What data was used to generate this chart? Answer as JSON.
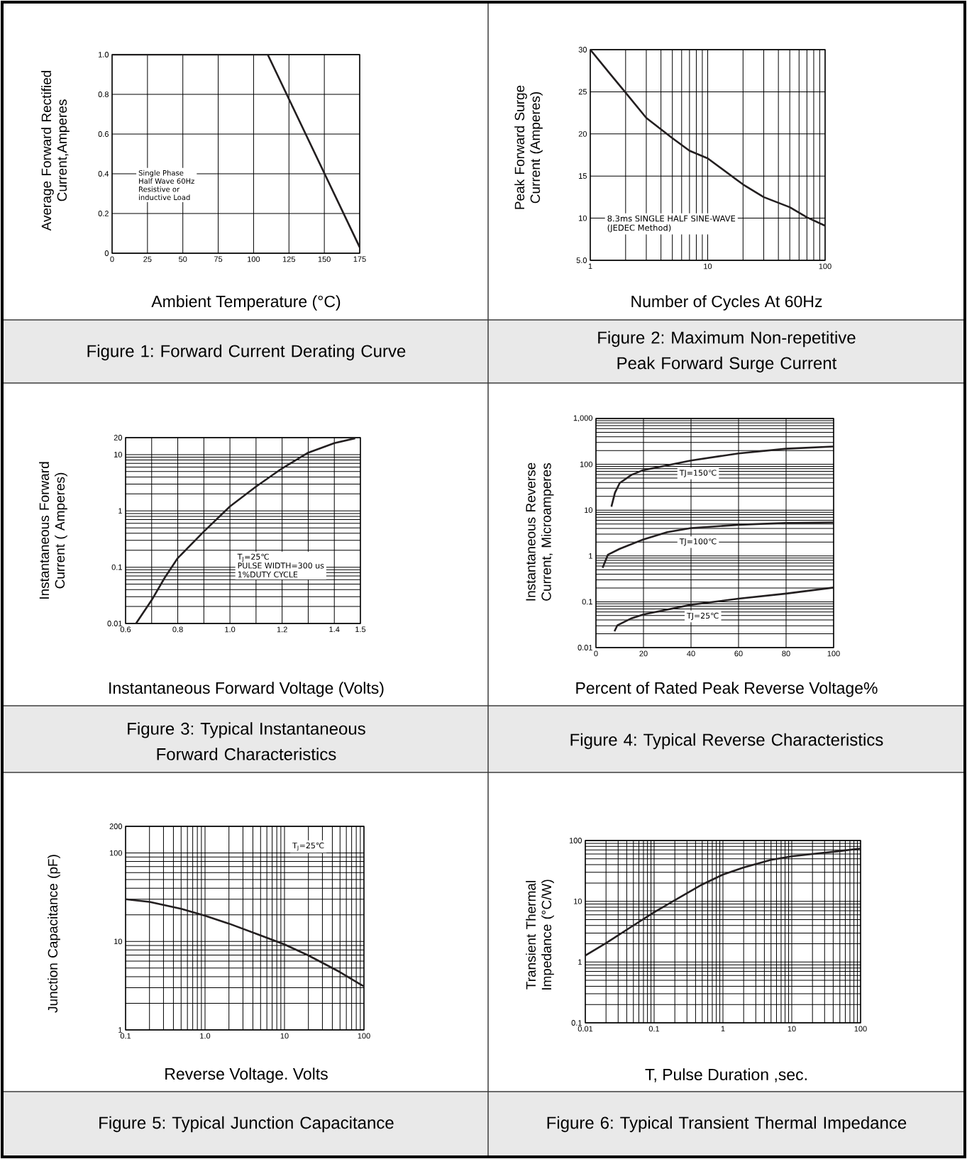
{
  "chart_data": [
    {
      "type": "line",
      "title": "Figure 1: Forward Current Derating Curve",
      "xlabel": "Ambient Temperature (°C)",
      "ylabel": "Average Forward Rectified Current,Amperes",
      "annotations": [
        "Single Phase",
        "Half Wave 60Hz",
        "Resistive or",
        "inductive Load"
      ],
      "series": [
        {
          "color": "#231f20",
          "x": [
            0,
            110,
            175
          ],
          "values": [
            1.0,
            1.0,
            0.03
          ]
        }
      ],
      "xlim": [
        0,
        175
      ],
      "ylim": [
        0,
        1
      ],
      "xticks": [
        0,
        25,
        50,
        75,
        100,
        125,
        150,
        175
      ],
      "yticks": [
        0,
        0.2,
        0.4,
        0.6,
        0.8,
        {
          "value": 1,
          "label": "1.0"
        }
      ],
      "grid": true,
      "marker": "none",
      "line_style": "solid"
    },
    {
      "type": "line",
      "title": "Figure 2: Maximum Non-repetitive Peak Forward Surge Current",
      "xlabel": "Number of Cycles At 60Hz",
      "ylabel": "Peak Forward Surge Current (Amperes)",
      "annotations": [
        "8.3ms SINGLE HALF SINE-WAVE",
        "(JEDEC Method)"
      ],
      "series": [
        {
          "color": "#231f20",
          "x": [
            1,
            1.5,
            2,
            3,
            5,
            7,
            10,
            20,
            30,
            50,
            70,
            100
          ],
          "values": [
            30,
            27,
            24.9,
            21.9,
            19.5,
            18,
            17.1,
            14,
            12.5,
            11.3,
            10.1,
            9.1
          ]
        }
      ],
      "xlim": [
        1,
        100
      ],
      "ylim": [
        5,
        30
      ],
      "xticks": [
        1,
        10,
        100
      ],
      "yticks": [
        {
          "value": 5,
          "label": "5.0"
        },
        10,
        15,
        20,
        25,
        30
      ],
      "log": "x",
      "grid": true,
      "marker": "none",
      "line_style": "solid"
    },
    {
      "type": "line",
      "title": "Figure 3: Typical Instantaneous Forward Characteristics",
      "xlabel": "Instantaneous Forward Voltage (Volts)",
      "ylabel": "Instantaneous Forward Current ( Amperes)",
      "annotations": [
        "T$_{J}$=25℃",
        "PULSE WIDTH=300 us",
        "1%DUTY CYCLE"
      ],
      "series": [
        {
          "color": "#231f20",
          "x": [
            0.64,
            0.7,
            0.75,
            0.8,
            0.9,
            1.0,
            1.1,
            1.2,
            1.3,
            1.4,
            1.48
          ],
          "values": [
            0.01,
            0.026,
            0.065,
            0.145,
            0.43,
            1.2,
            2.7,
            5.7,
            10.8,
            16,
            19.5
          ]
        }
      ],
      "xlim": [
        0.6,
        1.5
      ],
      "ylim": [
        0.01,
        20
      ],
      "xticks": [
        0.6,
        {
          "value": 0.7,
          "label": null
        },
        0.8,
        {
          "value": 0.9,
          "label": null
        },
        {
          "value": 1,
          "label": "1.0"
        },
        {
          "value": 1.1,
          "label": null
        },
        1.2,
        {
          "value": 1.3,
          "label": null
        },
        1.4,
        1.5
      ],
      "yticks": [
        0.01,
        0.1,
        1,
        10,
        20
      ],
      "log": "y",
      "grid": true,
      "marker": "none",
      "line_style": "solid"
    },
    {
      "type": "line",
      "title": "Figure 4: Typical Reverse Characteristics",
      "xlabel": "Percent of Rated Peak Reverse Voltage%",
      "ylabel": "Instantaneous Reverse Current, Microamperes",
      "series": [
        {
          "name": "TJ=150℃",
          "color": "#231f20",
          "x": [
            6.5,
            8,
            10,
            15,
            20,
            40,
            60,
            80,
            100
          ],
          "values": [
            11.9,
            24,
            39,
            59,
            75,
            121,
            173,
            219,
            245
          ]
        },
        {
          "name": "TJ=100℃",
          "color": "#231f20",
          "x": [
            2.8,
            5,
            10,
            20,
            30,
            40,
            60,
            80,
            100
          ],
          "values": [
            0.55,
            1.06,
            1.43,
            2.3,
            3.3,
            4.06,
            4.79,
            5.26,
            5.4
          ]
        },
        {
          "name": "TJ=25℃",
          "color": "#231f20",
          "x": [
            7.8,
            9,
            15,
            20,
            40,
            60,
            80,
            100
          ],
          "values": [
            0.0227,
            0.0305,
            0.0436,
            0.053,
            0.086,
            0.117,
            0.151,
            0.204
          ]
        }
      ],
      "xlim": [
        0,
        100
      ],
      "ylim": [
        0.01,
        1000
      ],
      "xticks": [
        0,
        20,
        40,
        60,
        80,
        100
      ],
      "yticks": [
        0.01,
        0.1,
        1,
        10,
        100,
        {
          "value": 1000,
          "label": "1,000"
        }
      ],
      "log": "y",
      "grid": true,
      "marker": "none",
      "line_style": "solid"
    },
    {
      "type": "line",
      "title": "Figure 5: Typical Junction Capacitance",
      "xlabel": "Reverse Voltage. Volts",
      "ylabel": "Junction Capacitance (pF)",
      "annotations": [
        "T$_{J}$=25℃"
      ],
      "series": [
        {
          "color": "#231f20",
          "x": [
            0.1,
            0.2,
            0.5,
            1,
            2,
            5,
            10,
            20,
            50,
            100
          ],
          "values": [
            30,
            28,
            23.4,
            19.5,
            15.9,
            11.7,
            9.25,
            6.95,
            4.5,
            3.1
          ]
        }
      ],
      "xlim": [
        0.1,
        100
      ],
      "ylim": [
        1,
        200
      ],
      "xticks": [
        0.1,
        {
          "value": 1,
          "label": "1.0"
        },
        10,
        100
      ],
      "yticks": [
        1,
        10,
        100,
        200
      ],
      "log": "xy",
      "grid": true,
      "marker": "none",
      "line_style": "solid"
    },
    {
      "type": "line",
      "title": "Figure 6: Typical Transient Thermal Impedance",
      "xlabel": "T, Pulse Duration ,sec.",
      "ylabel": "Transient Thermal Impedance (°C/W)",
      "series": [
        {
          "color": "#231f20",
          "x": [
            0.01,
            0.02,
            0.05,
            0.1,
            0.2,
            0.5,
            1,
            2,
            5,
            10,
            20,
            50,
            100
          ],
          "values": [
            1.28,
            2.05,
            4.0,
            6.6,
            10.4,
            18.9,
            27.5,
            36,
            48,
            55,
            60,
            67,
            74
          ]
        }
      ],
      "xlim": [
        0.01,
        100
      ],
      "ylim": [
        0.1,
        100
      ],
      "xticks": [
        0.01,
        0.1,
        1,
        10,
        100
      ],
      "yticks": [
        0.1,
        1,
        10,
        100
      ],
      "log": "xy",
      "grid": true,
      "marker": "none",
      "line_style": "solid"
    }
  ]
}
